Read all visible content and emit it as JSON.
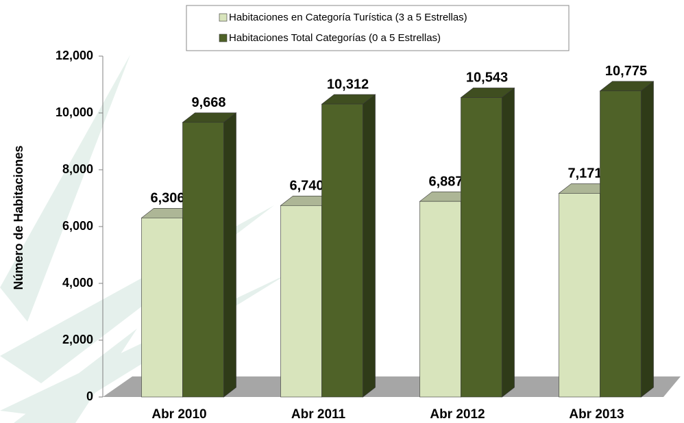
{
  "chart_data": {
    "type": "bar3d",
    "y_label": "Número de Habitaciones",
    "categories": [
      "Abr 2010",
      "Abr 2011",
      "Abr 2012",
      "Abr 2013"
    ],
    "series": [
      {
        "name": "Habitaciones en Categoría Turística (3 a 5 Estrellas)",
        "color": "#d8e4bc",
        "values": [
          6306,
          6740,
          6887,
          7171
        ],
        "value_labels": [
          "6,306",
          "6,740",
          "6,887",
          "7,171"
        ]
      },
      {
        "name": "Habitaciones Total Categorías (0 a 5 Estrellas)",
        "color": "#4f6228",
        "values": [
          9668,
          10312,
          10543,
          10775
        ],
        "value_labels": [
          "9,668",
          "10,312",
          "10,543",
          "10,775"
        ]
      }
    ],
    "ylim": [
      0,
      12000
    ],
    "yticks": [
      0,
      {
        "value": 2000,
        "label": "2,000"
      },
      {
        "value": 4000,
        "label": "4,000"
      },
      {
        "value": 6000,
        "label": "6,000"
      },
      {
        "value": 8000,
        "label": "8,000"
      },
      {
        "value": 10000,
        "label": "10,000"
      },
      {
        "value": 12000,
        "label": "12,000"
      }
    ],
    "legend": "top"
  }
}
